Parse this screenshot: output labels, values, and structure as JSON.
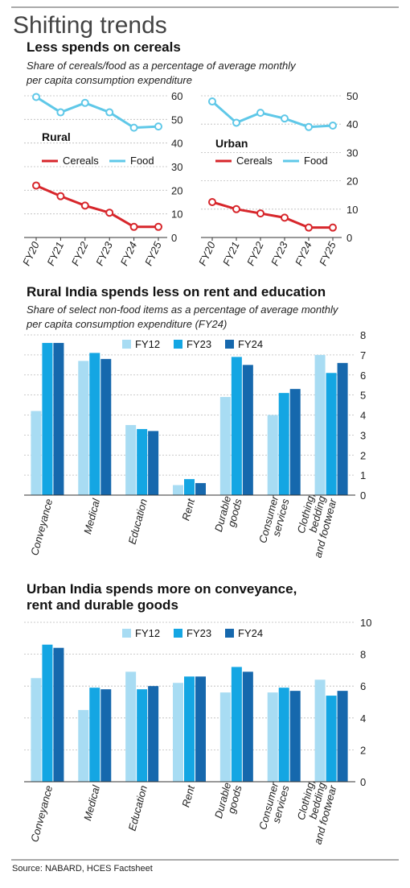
{
  "header": {
    "title": "Shifting trends",
    "source": "Source: NABARD, HCES Factsheet"
  },
  "colors": {
    "cereals": "#d7262b",
    "food": "#5fc8e8",
    "fy12": "#a8dcf3",
    "fy23": "#14a6e3",
    "fy24": "#1668ad",
    "rule": "#555555",
    "grid": "#bbbbbb"
  },
  "chart_data": [
    {
      "type": "line",
      "section_title": "Less spends on cereals",
      "subtitle_lines": [
        "Share of cereals/food as a percentage of average monthly",
        "per capita consumption expenditure"
      ],
      "panel": "Rural",
      "x": [
        "FY20",
        "FY21",
        "FY22",
        "FY23",
        "FY24",
        "FY25"
      ],
      "series": [
        {
          "name": "Cereals",
          "values": [
            22,
            17.5,
            13.5,
            10.5,
            4.5,
            4.5
          ]
        },
        {
          "name": "Food",
          "values": [
            59.5,
            53,
            57,
            53,
            46.5,
            47
          ]
        }
      ],
      "ylim": [
        0,
        60
      ],
      "yticks": [
        0,
        10,
        20,
        30,
        40,
        50,
        60
      ]
    },
    {
      "type": "line",
      "panel": "Urban",
      "x": [
        "FY20",
        "FY21",
        "FY22",
        "FY23",
        "FY24",
        "FY25"
      ],
      "series": [
        {
          "name": "Cereals",
          "values": [
            12.5,
            10,
            8.5,
            7,
            3.5,
            3.5
          ]
        },
        {
          "name": "Food",
          "values": [
            48,
            40.5,
            44,
            42,
            39,
            39.5
          ]
        }
      ],
      "ylim": [
        0,
        50
      ],
      "yticks": [
        0,
        10,
        20,
        30,
        40,
        50
      ]
    },
    {
      "type": "bar",
      "section_title": "Rural India spends less on rent and education",
      "subtitle_lines": [
        "Share of select non-food items as a percentage of average monthly",
        "per capita consumption expenditure (FY24)"
      ],
      "categories": [
        [
          "Conveyance"
        ],
        [
          "Medical"
        ],
        [
          "Education"
        ],
        [
          "Rent"
        ],
        [
          "Durable",
          "goods"
        ],
        [
          "Consumer",
          "services"
        ],
        [
          "Clothing,",
          "bedding",
          "and footwear"
        ]
      ],
      "series": [
        {
          "name": "FY12",
          "values": [
            4.2,
            6.7,
            3.5,
            0.5,
            4.9,
            4.0,
            7.0
          ]
        },
        {
          "name": "FY23",
          "values": [
            7.6,
            7.1,
            3.3,
            0.8,
            6.9,
            5.1,
            6.1
          ]
        },
        {
          "name": "FY24",
          "values": [
            7.6,
            6.8,
            3.2,
            0.6,
            6.5,
            5.3,
            6.6
          ]
        }
      ],
      "ylim": [
        0,
        8
      ],
      "yticks": [
        0,
        1,
        2,
        3,
        4,
        5,
        6,
        7,
        8
      ]
    },
    {
      "type": "bar",
      "section_title_lines": [
        "Urban India spends more on conveyance,",
        "rent and durable goods"
      ],
      "categories": [
        [
          "Conveyance"
        ],
        [
          "Medical"
        ],
        [
          "Education"
        ],
        [
          "Rent"
        ],
        [
          "Durable",
          "goods"
        ],
        [
          "Consumer",
          "services"
        ],
        [
          "Clothing,",
          "bedding",
          "and footwear"
        ]
      ],
      "series": [
        {
          "name": "FY12",
          "values": [
            6.5,
            4.5,
            6.9,
            6.2,
            5.6,
            5.6,
            6.4
          ]
        },
        {
          "name": "FY23",
          "values": [
            8.6,
            5.9,
            5.8,
            6.6,
            7.2,
            5.9,
            5.4
          ]
        },
        {
          "name": "FY24",
          "values": [
            8.4,
            5.8,
            6.0,
            6.6,
            6.9,
            5.7,
            5.7
          ]
        }
      ],
      "ylim": [
        0,
        10
      ],
      "yticks": [
        0,
        2,
        4,
        6,
        8,
        10
      ]
    }
  ]
}
